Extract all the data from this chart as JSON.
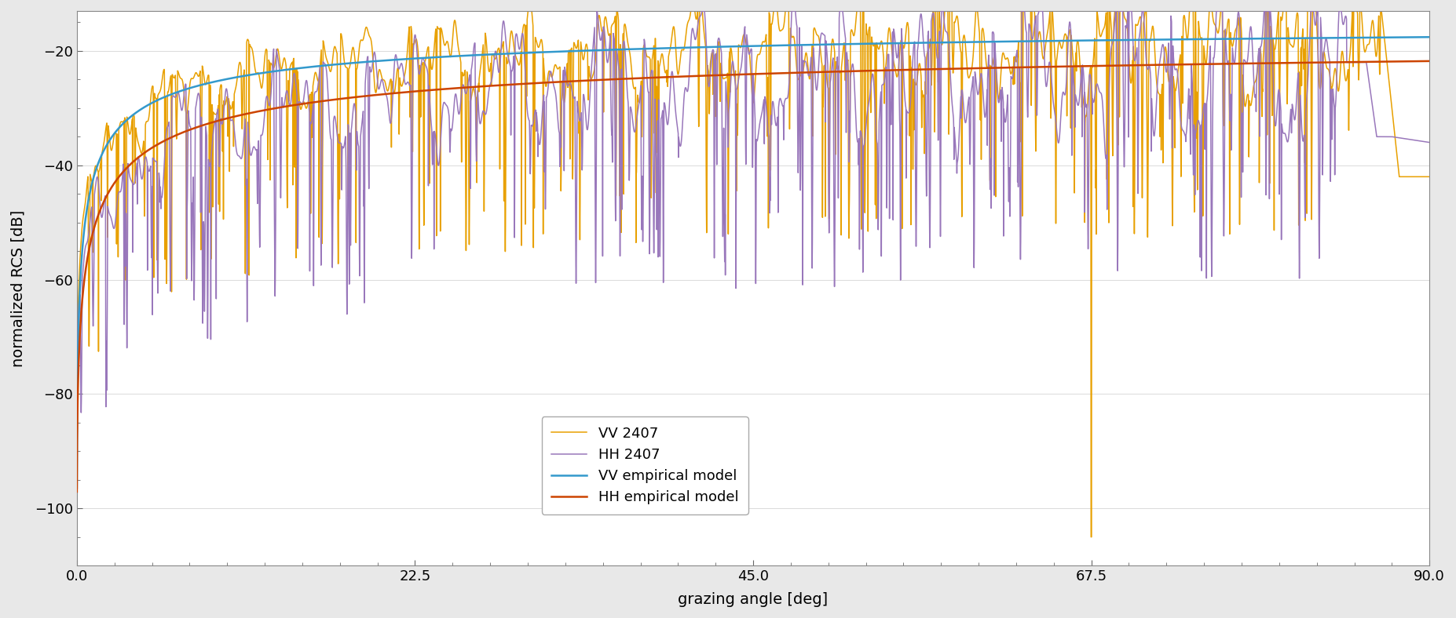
{
  "title": "",
  "xlabel": "grazing angle [deg]",
  "ylabel": "normalized RCS [dB]",
  "xlim": [
    0,
    90
  ],
  "ylim": [
    -110,
    -13
  ],
  "yticks": [
    -100,
    -80,
    -60,
    -40,
    -20
  ],
  "xticks": [
    0,
    22.5,
    45,
    67.5,
    90
  ],
  "bg_color": "#e8e8e8",
  "plot_bg": "#ffffff",
  "color_vv_model": "#3399cc",
  "color_hh_model": "#cc4400",
  "color_vv_2407": "#e8a000",
  "color_hh_2407": "#9977bb",
  "legend_labels": [
    "VV empirical model",
    "HH empirical model",
    "VV 2407",
    "HH 2407"
  ],
  "lw_smooth": 1.8,
  "lw_noisy": 1.1
}
